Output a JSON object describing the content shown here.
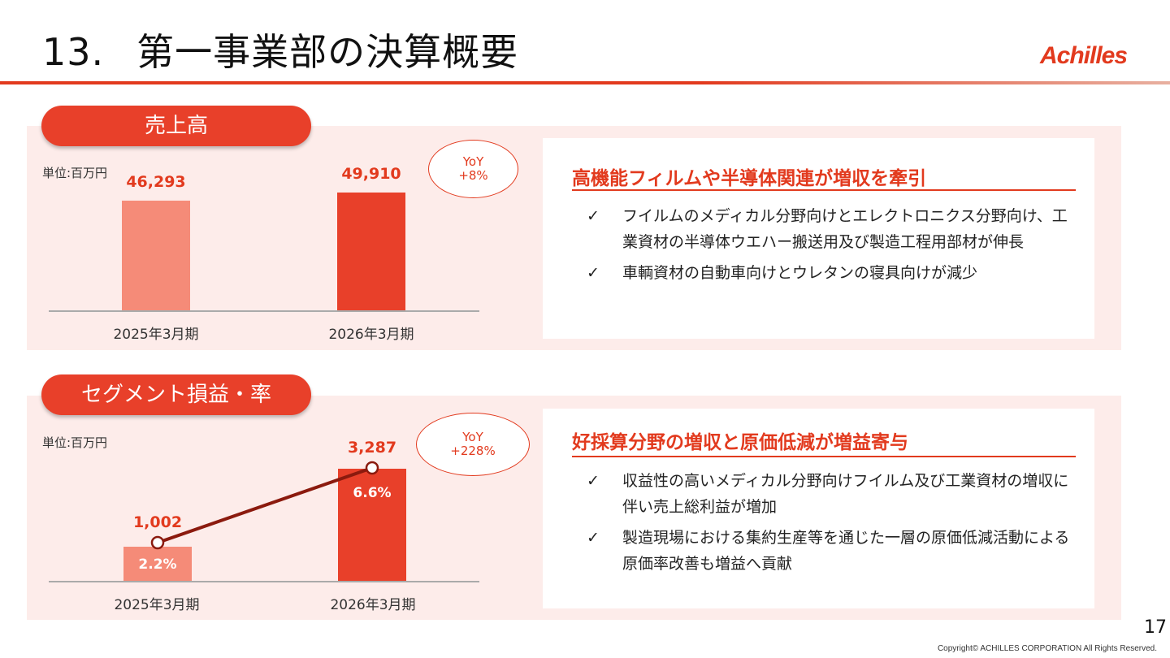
{
  "header": {
    "number": "13.",
    "title": "第一事業部の決算概要",
    "logo": "Achilles"
  },
  "sales": {
    "section_label": "売上高",
    "unit": "単位:百万円",
    "yoy_label": "YoY",
    "yoy_value": "+8%",
    "headline": "高機能フィルムや半導体関連が増収を牽引",
    "bullets": [
      "フイルムのメディカル分野向けとエレクトロニクス分野向け、工業資材の半導体ウエハー搬送用及び製造工程用部材が伸長",
      "車輌資材の自動車向けとウレタンの寝具向けが減少"
    ]
  },
  "segment": {
    "section_label": "セグメント損益・率",
    "unit": "単位:百万円",
    "yoy_label": "YoY",
    "yoy_value": "+228%",
    "headline": "好採算分野の増収と原価低減が増益寄与",
    "bullets": [
      "収益性の高いメディカル分野向けフイルム及び工業資材の増収に伴い売上総利益が増加",
      "製造現場における集約生産等を通じた一層の原価低減活動による原価率改善も増益へ貢献"
    ]
  },
  "check_mark": "✓",
  "page_number": "17",
  "copyright": "Copyright© ACHILLES CORPORATION All Rights  Reserved.",
  "chart_data": [
    {
      "type": "bar",
      "title": "売上高",
      "unit": "単位:百万円",
      "categories": [
        "2025年3月期",
        "2026年3月期"
      ],
      "values": [
        46293,
        49910
      ],
      "value_labels": [
        "46,293",
        "49,910"
      ],
      "colors": [
        "#f58b78",
        "#e8402a"
      ],
      "ylim": [
        0,
        55000
      ]
    },
    {
      "type": "bar",
      "title": "セグメント損益・率",
      "unit": "単位:百万円",
      "categories": [
        "2025年3月期",
        "2026年3月期"
      ],
      "values": [
        1002,
        3287
      ],
      "value_labels": [
        "1,002",
        "3,287"
      ],
      "rates": [
        2.2,
        6.6
      ],
      "rate_labels": [
        "2.2%",
        "6.6%"
      ],
      "colors": [
        "#f58b78",
        "#e8402a"
      ],
      "line_color": "#8b1a0e",
      "ylim": [
        0,
        3800
      ]
    }
  ]
}
